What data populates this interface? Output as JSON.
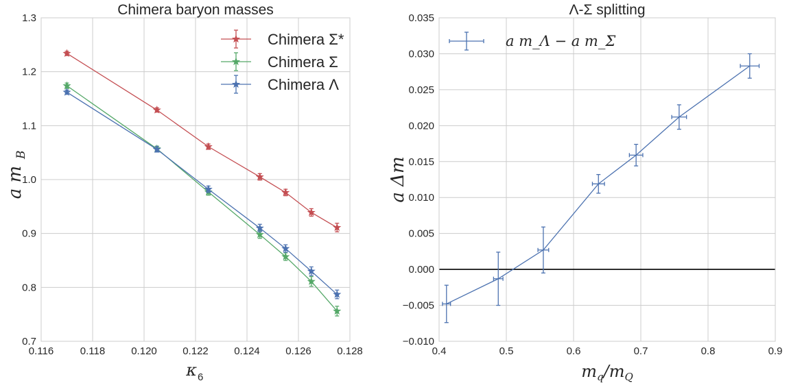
{
  "chart_data": [
    {
      "type": "line",
      "title": "Chimera baryon masses",
      "xlabel": "κ6",
      "ylabel": "a m_B",
      "xlim": [
        0.116,
        0.128
      ],
      "ylim": [
        0.7,
        1.3
      ],
      "xticks": [
        0.116,
        0.118,
        0.12,
        0.122,
        0.124,
        0.126,
        0.128
      ],
      "xtick_labels": [
        "0.116",
        "0.118",
        "0.120",
        "0.122",
        "0.124",
        "0.126",
        "0.128"
      ],
      "yticks": [
        0.7,
        0.8,
        0.9,
        1.0,
        1.1,
        1.2,
        1.3
      ],
      "ytick_labels": [
        "0.7",
        "0.8",
        "0.9",
        "1.0",
        "1.1",
        "1.2",
        "1.3"
      ],
      "grid": true,
      "legend_position": "top-right",
      "x": [
        0.117,
        0.1205,
        0.1225,
        0.1245,
        0.1255,
        0.1265,
        0.1275
      ],
      "series": [
        {
          "name": "Chimera Σ*",
          "color": "#c44e52",
          "marker": "star",
          "values": [
            1.234,
            1.129,
            1.061,
            1.005,
            0.976,
            0.939,
            0.911
          ],
          "yerr": [
            0.004,
            0.004,
            0.005,
            0.006,
            0.006,
            0.007,
            0.008
          ]
        },
        {
          "name": "Chimera Σ",
          "color": "#55a868",
          "marker": "star",
          "values": [
            1.174,
            1.057,
            0.977,
            0.898,
            0.857,
            0.811,
            0.756
          ],
          "yerr": [
            0.005,
            0.005,
            0.006,
            0.007,
            0.007,
            0.009,
            0.009
          ]
        },
        {
          "name": "Chimera Λ",
          "color": "#4c72b0",
          "marker": "star",
          "values": [
            1.162,
            1.056,
            0.982,
            0.91,
            0.872,
            0.83,
            0.787
          ],
          "yerr": [
            0.004,
            0.005,
            0.006,
            0.007,
            0.007,
            0.008,
            0.008
          ]
        }
      ]
    },
    {
      "type": "line",
      "title": "Λ-Σ splitting",
      "xlabel": "m_q/m_Q",
      "ylabel": "a Δm",
      "xlim": [
        0.4,
        0.9
      ],
      "ylim": [
        -0.01,
        0.035
      ],
      "xticks": [
        0.4,
        0.5,
        0.6,
        0.7,
        0.8,
        0.9
      ],
      "xtick_labels": [
        "0.4",
        "0.5",
        "0.6",
        "0.7",
        "0.8",
        "0.9"
      ],
      "yticks": [
        -0.01,
        -0.005,
        0.0,
        0.005,
        0.01,
        0.015,
        0.02,
        0.025,
        0.03,
        0.035
      ],
      "ytick_labels": [
        "−0.010",
        "−0.005",
        "0.000",
        "0.005",
        "0.010",
        "0.015",
        "0.020",
        "0.025",
        "0.030",
        "0.035"
      ],
      "grid": true,
      "reference_line_y": 0.0,
      "legend_position": "top-left",
      "series": [
        {
          "name": "a m_Λ − a m_Σ",
          "color": "#4c72b0",
          "marker": "errorbar",
          "x": [
            0.411,
            0.488,
            0.555,
            0.637,
            0.693,
            0.757,
            0.862
          ],
          "values": [
            -0.0048,
            -0.0013,
            0.0027,
            0.0119,
            0.0159,
            0.0212,
            0.0283
          ],
          "yerr": [
            0.0026,
            0.0037,
            0.0032,
            0.0013,
            0.0015,
            0.0017,
            0.0017
          ],
          "xerr": [
            0.006,
            0.007,
            0.008,
            0.009,
            0.01,
            0.011,
            0.014
          ]
        }
      ]
    }
  ]
}
